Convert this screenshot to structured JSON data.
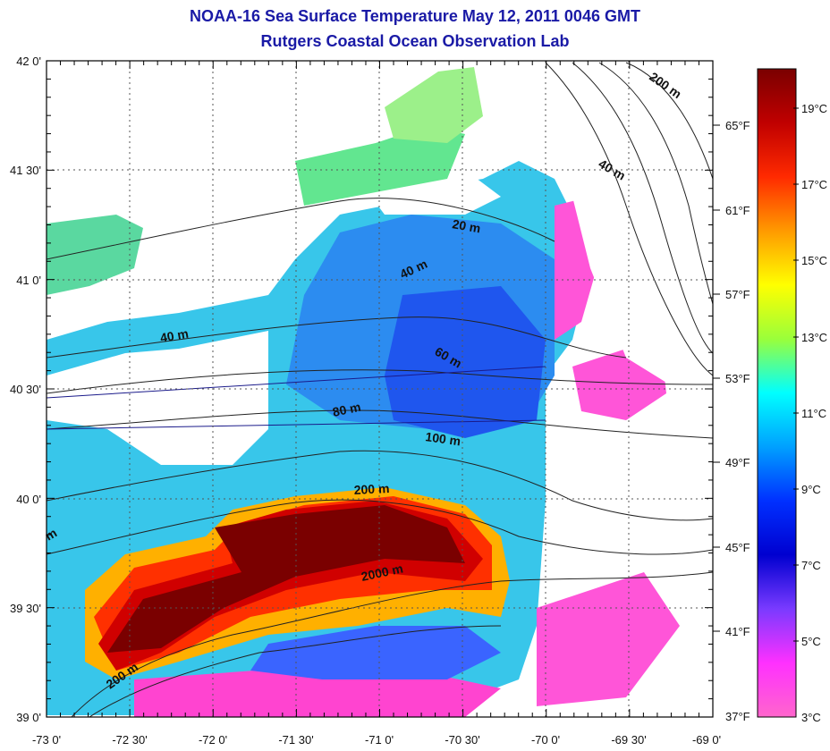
{
  "header": {
    "title": "NOAA-16 Sea Surface Temperature May 12, 2011 0046 GMT",
    "subtitle": "Rutgers Coastal Ocean Observation Lab"
  },
  "map": {
    "lat_labels": [
      "42 0'",
      "41 30'",
      "41 0'",
      "40 30'",
      "40 0'",
      "39 30'",
      "39 0'"
    ],
    "lon_labels": [
      "-73 0'",
      "-72 30'",
      "-72 0'",
      "-71 30'",
      "-71 0'",
      "-70 30'",
      "-70 0'",
      "-69 30'",
      "-69 0'"
    ],
    "depth_labels": [
      "200 m",
      "40 m",
      "20 m",
      "40 m",
      "40 m",
      "60 m",
      "80 m",
      "100 m",
      "200 m",
      "2000 m",
      "200 m",
      "m"
    ]
  },
  "colorbar": {
    "fahrenheit_labels": [
      "65°F",
      "61°F",
      "57°F",
      "53°F",
      "49°F",
      "45°F",
      "41°F",
      "37°F"
    ],
    "celsius_labels": [
      "19°C",
      "17°C",
      "15°C",
      "13°C",
      "11°C",
      "9°C",
      "7°C",
      "5°C",
      "3°C"
    ],
    "colors": [
      "#7a0000",
      "#c00000",
      "#ff2a00",
      "#ff9a00",
      "#ffff00",
      "#9aff3a",
      "#00ffff",
      "#00a0ff",
      "#0030ff",
      "#0000d0",
      "#7a3aff",
      "#ff30ff",
      "#ff66cc"
    ]
  }
}
